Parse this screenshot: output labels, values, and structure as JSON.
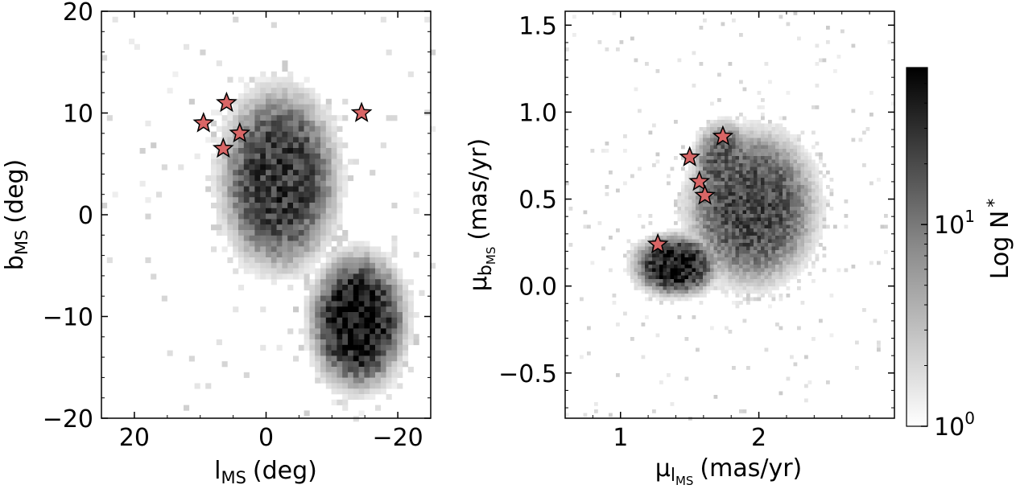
{
  "chart_data": [
    {
      "type": "heatmap",
      "xlabel": "l",
      "xlabel_sub": "MS",
      "xlabel_unit": "(deg)",
      "ylabel": "b",
      "ylabel_sub": "MS",
      "ylabel_unit": "(deg)",
      "xlim": [
        25,
        -25
      ],
      "ylim": [
        -20,
        20
      ],
      "xticks": [
        {
          "value": 20,
          "label": "20"
        },
        {
          "value": 0,
          "label": "0"
        },
        {
          "value": -20,
          "label": "−20"
        }
      ],
      "yticks": [
        {
          "value": 20,
          "label": "20"
        },
        {
          "value": 10,
          "label": "10"
        },
        {
          "value": 0,
          "label": "0"
        },
        {
          "value": -10,
          "label": "−10"
        },
        {
          "value": -20,
          "label": "−20"
        }
      ],
      "density_blobs": [
        {
          "cx": -2,
          "cy": 3.5,
          "rx": 8,
          "ry": 8,
          "peak": 0.78
        },
        {
          "cx": -14,
          "cy": -10.5,
          "rx": 6.5,
          "ry": 6,
          "peak": 0.95
        }
      ],
      "stars": [
        {
          "x": 6,
          "y": 11
        },
        {
          "x": 9.5,
          "y": 9
        },
        {
          "x": 4,
          "y": 8
        },
        {
          "x": 6.5,
          "y": 6.5
        },
        {
          "x": -14.5,
          "y": 10
        }
      ],
      "star_color": "#d96666"
    },
    {
      "type": "heatmap",
      "xlabel": "μ",
      "xlabel_sub": "l",
      "xlabel_subsub": "MS",
      "xlabel_unit": "(mas/yr)",
      "ylabel": "μ",
      "ylabel_sub": "b",
      "ylabel_subsub": "MS",
      "ylabel_unit": "(mas/yr)",
      "xlim": [
        0.6,
        2.98
      ],
      "ylim": [
        -0.76,
        1.58
      ],
      "xticks": [
        {
          "value": 1,
          "label": "1"
        },
        {
          "value": 2,
          "label": "2"
        }
      ],
      "yticks": [
        {
          "value": 1.5,
          "label": "1.5"
        },
        {
          "value": 1.0,
          "label": "1.0"
        },
        {
          "value": 0.5,
          "label": "0.5"
        },
        {
          "value": 0.0,
          "label": "0.0"
        },
        {
          "value": -0.5,
          "label": "−0.5"
        }
      ],
      "density_blobs": [
        {
          "cx": 1.95,
          "cy": 0.45,
          "rx": 0.42,
          "ry": 0.4,
          "peak": 0.72
        },
        {
          "cx": 1.4,
          "cy": 0.12,
          "rx": 0.28,
          "ry": 0.16,
          "peak": 0.9
        },
        {
          "cx": 1.75,
          "cy": 0.7,
          "rx": 0.2,
          "ry": 0.22,
          "peak": 0.65
        }
      ],
      "stars": [
        {
          "x": 1.74,
          "y": 0.86
        },
        {
          "x": 1.5,
          "y": 0.74
        },
        {
          "x": 1.57,
          "y": 0.6
        },
        {
          "x": 1.61,
          "y": 0.52
        },
        {
          "x": 1.27,
          "y": 0.24
        }
      ],
      "star_color": "#d96666"
    }
  ],
  "colorbar": {
    "label": "Log N",
    "label_sub": "*",
    "scale": "log",
    "ticks": [
      {
        "value": 1,
        "base": "10",
        "exp": "0"
      },
      {
        "value": 10,
        "base": "10",
        "exp": "1"
      }
    ],
    "color_low": "#ffffff",
    "color_high": "#000000"
  }
}
